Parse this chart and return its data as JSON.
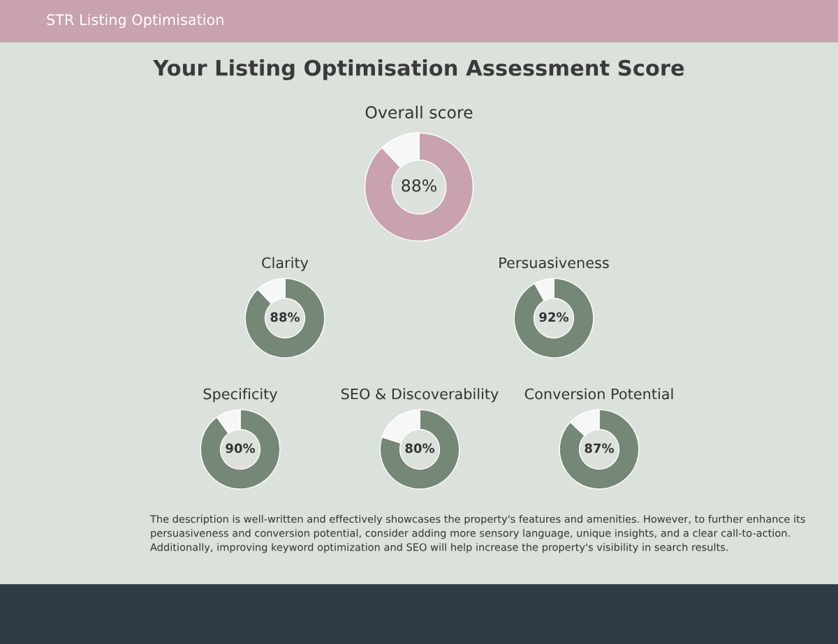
{
  "chart_data": [
    {
      "type": "other",
      "title": "Your Listing Optimisation Assessment Score",
      "annotations": [
        "STR Listing Optimisation",
        "The description is well-written and effectively showcases the property's features and amenities. However, to further enhance its persuasiveness and conversion potential, consider adding more sensory language, unique insights, and a clear call-to-action. Additionally, improving keyword optimization and SEO will help increase the property's visibility in search results."
      ]
    },
    {
      "type": "donut",
      "title": "Overall score",
      "categories": [
        null,
        null
      ],
      "values": [
        88,
        12
      ],
      "colors": [
        "#c8a2ae",
        "#f7f7f7"
      ],
      "value_labels": [
        "88%",
        null
      ]
    },
    {
      "type": "donut",
      "title": "Clarity",
      "categories": [
        null,
        null
      ],
      "values": [
        88,
        12
      ],
      "colors": [
        "#758777",
        "#f7f7f7"
      ],
      "value_labels": [
        "88%",
        null
      ]
    },
    {
      "type": "donut",
      "title": "Persuasiveness",
      "categories": [
        null,
        null
      ],
      "values": [
        92,
        8
      ],
      "colors": [
        "#758777",
        "#f7f7f7"
      ],
      "value_labels": [
        "92%",
        null
      ]
    },
    {
      "type": "donut",
      "title": "Specificity",
      "categories": [
        null,
        null
      ],
      "values": [
        90,
        10
      ],
      "colors": [
        "#758777",
        "#f7f7f7"
      ],
      "value_labels": [
        "90%",
        null
      ]
    },
    {
      "type": "donut",
      "title": "SEO & Discoverability",
      "categories": [
        null,
        null
      ],
      "values": [
        80,
        20
      ],
      "colors": [
        "#758777",
        "#f7f7f7"
      ],
      "value_labels": [
        "80%",
        null
      ]
    },
    {
      "type": "donut",
      "title": "Conversion Potential",
      "categories": [
        null,
        null
      ],
      "values": [
        87,
        13
      ],
      "colors": [
        "#758777",
        "#f7f7f7"
      ],
      "value_labels": [
        "87%",
        null
      ]
    }
  ]
}
